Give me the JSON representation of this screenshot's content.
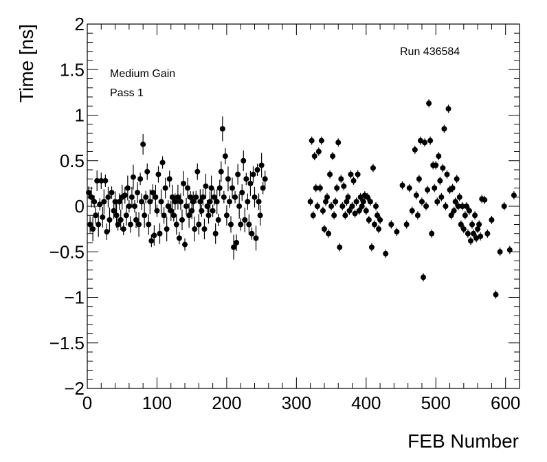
{
  "chart_data": {
    "type": "scatter",
    "xlabel": "FEB Number",
    "ylabel": "Time [ns]",
    "xlim": [
      0,
      620
    ],
    "ylim": [
      -2,
      2
    ],
    "x_major_ticks": [
      0,
      100,
      200,
      300,
      400,
      500,
      600
    ],
    "y_major_ticks": [
      -2,
      -1.5,
      -1,
      -0.5,
      0,
      0.5,
      1,
      1.5,
      2
    ],
    "x_tick_labels": [
      "0",
      "100",
      "200",
      "300",
      "400",
      "500",
      "600"
    ],
    "y_tick_labels": [
      "−2",
      "−1.5",
      "−1",
      "−0.5",
      "0",
      "0.5",
      "1",
      "1.5",
      "2"
    ],
    "annotations": [
      "Medium Gain",
      "Pass 1",
      "Run 436584"
    ],
    "grid": false,
    "marker_color": "#000000",
    "points": [
      [
        2,
        0.15
      ],
      [
        4,
        -0.2
      ],
      [
        6,
        0.1
      ],
      [
        8,
        -0.25
      ],
      [
        10,
        0.05
      ],
      [
        12,
        -0.1
      ],
      [
        14,
        0.28
      ],
      [
        16,
        -0.2
      ],
      [
        18,
        0.02
      ],
      [
        20,
        0.28
      ],
      [
        22,
        -0.12
      ],
      [
        24,
        0.05
      ],
      [
        26,
        0.28
      ],
      [
        28,
        -0.28
      ],
      [
        30,
        0.1
      ],
      [
        32,
        -0.15
      ],
      [
        35,
        0.15
      ],
      [
        38,
        -0.05
      ],
      [
        40,
        0.05
      ],
      [
        42,
        -0.1
      ],
      [
        44,
        -0.2
      ],
      [
        46,
        0.05
      ],
      [
        48,
        -0.15
      ],
      [
        50,
        0.1
      ],
      [
        52,
        -0.25
      ],
      [
        54,
        0.12
      ],
      [
        56,
        -0.1
      ],
      [
        58,
        0.2
      ],
      [
        60,
        0.0
      ],
      [
        62,
        -0.2
      ],
      [
        64,
        0.1
      ],
      [
        66,
        0.32
      ],
      [
        68,
        0.0
      ],
      [
        70,
        -0.15
      ],
      [
        72,
        0.15
      ],
      [
        74,
        -0.2
      ],
      [
        76,
        0.3
      ],
      [
        78,
        0.05
      ],
      [
        80,
        0.68
      ],
      [
        82,
        -0.1
      ],
      [
        84,
        0.1
      ],
      [
        86,
        0.38
      ],
      [
        88,
        -0.2
      ],
      [
        90,
        0.05
      ],
      [
        92,
        -0.38
      ],
      [
        94,
        0.15
      ],
      [
        96,
        -0.32
      ],
      [
        98,
        0.1
      ],
      [
        100,
        -0.05
      ],
      [
        102,
        0.35
      ],
      [
        104,
        -0.3
      ],
      [
        106,
        0.05
      ],
      [
        108,
        0.48
      ],
      [
        110,
        -0.1
      ],
      [
        112,
        0.2
      ],
      [
        114,
        -0.25
      ],
      [
        116,
        0.0
      ],
      [
        118,
        0.3
      ],
      [
        120,
        -0.05
      ],
      [
        122,
        0.1
      ],
      [
        124,
        -0.1
      ],
      [
        126,
        0.05
      ],
      [
        128,
        -0.2
      ],
      [
        130,
        0.1
      ],
      [
        132,
        -0.35
      ],
      [
        134,
        0.05
      ],
      [
        136,
        -0.15
      ],
      [
        138,
        0.25
      ],
      [
        140,
        -0.42
      ],
      [
        142,
        0.0
      ],
      [
        144,
        0.2
      ],
      [
        146,
        -0.1
      ],
      [
        148,
        0.1
      ],
      [
        150,
        -0.05
      ],
      [
        152,
        0.05
      ],
      [
        154,
        -0.25
      ],
      [
        156,
        0.1
      ],
      [
        158,
        0.38
      ],
      [
        160,
        -0.2
      ],
      [
        162,
        0.05
      ],
      [
        164,
        -0.05
      ],
      [
        166,
        0.1
      ],
      [
        168,
        -0.25
      ],
      [
        170,
        0.22
      ],
      [
        172,
        0.0
      ],
      [
        174,
        -0.1
      ],
      [
        176,
        0.05
      ],
      [
        178,
        0.2
      ],
      [
        180,
        -0.05
      ],
      [
        182,
        0.1
      ],
      [
        184,
        -0.3
      ],
      [
        186,
        0.05
      ],
      [
        188,
        -0.15
      ],
      [
        190,
        0.2
      ],
      [
        192,
        0.38
      ],
      [
        194,
        0.85
      ],
      [
        196,
        0.1
      ],
      [
        198,
        0.55
      ],
      [
        200,
        -0.1
      ],
      [
        202,
        0.3
      ],
      [
        204,
        0.05
      ],
      [
        206,
        -0.2
      ],
      [
        208,
        0.2
      ],
      [
        210,
        -0.45
      ],
      [
        212,
        0.1
      ],
      [
        214,
        -0.4
      ],
      [
        216,
        0.35
      ],
      [
        218,
        0.0
      ],
      [
        220,
        -0.2
      ],
      [
        222,
        0.15
      ],
      [
        224,
        0.5
      ],
      [
        226,
        -0.15
      ],
      [
        228,
        0.3
      ],
      [
        230,
        0.05
      ],
      [
        232,
        -0.2
      ],
      [
        234,
        0.25
      ],
      [
        236,
        -0.3
      ],
      [
        238,
        0.35
      ],
      [
        240,
        0.1
      ],
      [
        242,
        -0.35
      ],
      [
        244,
        0.4
      ],
      [
        246,
        0.05
      ],
      [
        248,
        -0.1
      ],
      [
        250,
        0.45
      ],
      [
        252,
        0.2
      ],
      [
        255,
        0.3
      ],
      [
        320,
        0.05
      ],
      [
        322,
        0.72
      ],
      [
        324,
        -0.1
      ],
      [
        326,
        0.55
      ],
      [
        328,
        0.2
      ],
      [
        330,
        0.0
      ],
      [
        332,
        0.6
      ],
      [
        334,
        0.2
      ],
      [
        336,
        0.72
      ],
      [
        338,
        -0.05
      ],
      [
        340,
        -0.25
      ],
      [
        342,
        0.05
      ],
      [
        344,
        0.1
      ],
      [
        346,
        -0.3
      ],
      [
        348,
        0.35
      ],
      [
        350,
        0.0
      ],
      [
        352,
        0.55
      ],
      [
        354,
        -0.1
      ],
      [
        356,
        0.05
      ],
      [
        358,
        0.2
      ],
      [
        360,
        0.7
      ],
      [
        362,
        -0.45
      ],
      [
        364,
        0.3
      ],
      [
        366,
        0.0
      ],
      [
        368,
        0.22
      ],
      [
        370,
        -0.1
      ],
      [
        372,
        0.05
      ],
      [
        374,
        0.1
      ],
      [
        376,
        -0.05
      ],
      [
        378,
        0.35
      ],
      [
        380,
        0.0
      ],
      [
        382,
        0.28
      ],
      [
        384,
        -0.08
      ],
      [
        386,
        0.05
      ],
      [
        388,
        0.35
      ],
      [
        390,
        -0.05
      ],
      [
        392,
        0.1
      ],
      [
        394,
        0.0
      ],
      [
        396,
        0.05
      ],
      [
        398,
        0.12
      ],
      [
        400,
        -0.05
      ],
      [
        402,
        0.1
      ],
      [
        404,
        -0.15
      ],
      [
        406,
        0.05
      ],
      [
        408,
        -0.45
      ],
      [
        410,
        0.42
      ],
      [
        412,
        -0.2
      ],
      [
        414,
        0.0
      ],
      [
        416,
        -0.1
      ],
      [
        418,
        -0.25
      ],
      [
        420,
        -0.15
      ],
      [
        428,
        -0.52
      ],
      [
        436,
        -0.2
      ],
      [
        444,
        -0.28
      ],
      [
        452,
        0.23
      ],
      [
        458,
        -0.2
      ],
      [
        462,
        0.2
      ],
      [
        466,
        -0.05
      ],
      [
        470,
        0.62
      ],
      [
        472,
        0.12
      ],
      [
        474,
        -0.1
      ],
      [
        476,
        0.3
      ],
      [
        478,
        0.72
      ],
      [
        480,
        0.05
      ],
      [
        482,
        -0.78
      ],
      [
        484,
        0.7
      ],
      [
        486,
        0.0
      ],
      [
        488,
        0.18
      ],
      [
        490,
        1.13
      ],
      [
        492,
        0.72
      ],
      [
        494,
        -0.3
      ],
      [
        496,
        0.45
      ],
      [
        498,
        0.2
      ],
      [
        500,
        0.45
      ],
      [
        502,
        0.05
      ],
      [
        504,
        0.55
      ],
      [
        506,
        0.28
      ],
      [
        508,
        0.1
      ],
      [
        510,
        0.42
      ],
      [
        512,
        0.85
      ],
      [
        514,
        0.0
      ],
      [
        516,
        0.35
      ],
      [
        518,
        1.07
      ],
      [
        520,
        0.18
      ],
      [
        522,
        -0.1
      ],
      [
        524,
        0.2
      ],
      [
        526,
        -0.05
      ],
      [
        528,
        0.05
      ],
      [
        530,
        0.3
      ],
      [
        532,
        0.0
      ],
      [
        534,
        0.1
      ],
      [
        536,
        -0.2
      ],
      [
        538,
        0.0
      ],
      [
        540,
        -0.25
      ],
      [
        542,
        -0.1
      ],
      [
        544,
        0.0
      ],
      [
        546,
        -0.3
      ],
      [
        548,
        -0.05
      ],
      [
        550,
        -0.38
      ],
      [
        552,
        -0.2
      ],
      [
        554,
        -0.3
      ],
      [
        556,
        -0.1
      ],
      [
        558,
        -0.35
      ],
      [
        560,
        -0.25
      ],
      [
        562,
        -0.2
      ],
      [
        564,
        -0.33
      ],
      [
        566,
        0.08
      ],
      [
        570,
        0.07
      ],
      [
        574,
        -0.3
      ],
      [
        580,
        -0.15
      ],
      [
        586,
        -0.97
      ],
      [
        592,
        -0.5
      ],
      [
        598,
        0.0
      ],
      [
        606,
        -0.48
      ],
      [
        612,
        0.12
      ]
    ]
  },
  "text": {
    "gain": "Medium Gain",
    "pass": "Pass 1",
    "run": "Run 436584",
    "xlabel": "FEB Number",
    "ylabel": "Time [ns]"
  }
}
